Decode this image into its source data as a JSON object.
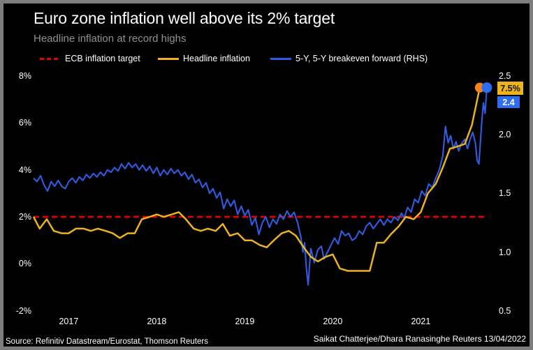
{
  "header": {
    "title": "Euro zone inflation well above its 2% target",
    "subtitle": "Headline inflation at record highs"
  },
  "legend": [
    {
      "label": "ECB inflation target",
      "color": "#e60000",
      "style": "dashed"
    },
    {
      "label": "Headline inflation",
      "color": "#ecb220",
      "style": "solid"
    },
    {
      "label": "5-Y, 5-Y breakeven forward (RHS)",
      "color": "#2f5ce0",
      "style": "solid"
    }
  ],
  "footer": {
    "source": "Source: Refinitiv Datastream/Eurostat, Thomson Reuters",
    "credit": "Saikat Chatterjee/Dhara Ranasinghe Reuters 13/04/2022"
  },
  "colors": {
    "background": "#000000",
    "frame_border": "#7d7d7d",
    "target_red": "#e60000",
    "headline_yellow": "#ecb220",
    "breakeven_blue": "#2f5ce0",
    "headline_marker_orange": "#f5821f",
    "breakeven_marker_blue": "#2e6cf2",
    "badge_yellow_bg": "#ecb220",
    "badge_yellow_text": "#1c1400",
    "badge_blue_bg": "#2e6cf2",
    "badge_blue_text": "#ffffff"
  },
  "chart_data": {
    "type": "line",
    "title": "Euro zone inflation well above its 2% target",
    "x_axis": {
      "ticks": [
        "2017",
        "2018",
        "2019",
        "2020",
        "2021"
      ],
      "tick_positions_decimal_year": [
        2017.5,
        2018.5,
        2019.5,
        2020.5,
        2021.5
      ],
      "range": [
        2017.1,
        2022.3
      ]
    },
    "left_axis": {
      "tick_labels": [
        "8%",
        "6%",
        "4%",
        "2%",
        "0%",
        "-2%"
      ],
      "tick_values": [
        8,
        6,
        4,
        2,
        0,
        -2
      ],
      "range": [
        -2,
        8
      ],
      "unit": "percent"
    },
    "right_axis": {
      "tick_labels": [
        "2.5",
        "2.0",
        "1.5",
        "1.0",
        "0.5"
      ],
      "tick_values": [
        2.5,
        2.0,
        1.5,
        1.0,
        0.5
      ],
      "range": [
        0.5,
        2.5
      ]
    },
    "grid": false,
    "legend_position": "top",
    "reference_line": {
      "name": "ECB inflation target",
      "axis": "left",
      "value": 2,
      "style": "dashed",
      "color": "#e60000"
    },
    "series": [
      {
        "name": "Headline inflation",
        "axis": "left",
        "color": "#ecb220",
        "end_label": "7.5%",
        "end_value": 7.5,
        "marker_color": "#f5821f",
        "points": [
          [
            2017.1,
            2.0
          ],
          [
            2017.17,
            1.5
          ],
          [
            2017.25,
            1.9
          ],
          [
            2017.33,
            1.4
          ],
          [
            2017.42,
            1.3
          ],
          [
            2017.5,
            1.3
          ],
          [
            2017.58,
            1.5
          ],
          [
            2017.67,
            1.5
          ],
          [
            2017.75,
            1.4
          ],
          [
            2017.83,
            1.5
          ],
          [
            2017.92,
            1.4
          ],
          [
            2018.0,
            1.3
          ],
          [
            2018.08,
            1.1
          ],
          [
            2018.17,
            1.3
          ],
          [
            2018.25,
            1.3
          ],
          [
            2018.33,
            1.9
          ],
          [
            2018.42,
            2.0
          ],
          [
            2018.5,
            2.1
          ],
          [
            2018.58,
            2.0
          ],
          [
            2018.67,
            2.1
          ],
          [
            2018.75,
            2.2
          ],
          [
            2018.83,
            1.9
          ],
          [
            2018.92,
            1.5
          ],
          [
            2019.0,
            1.4
          ],
          [
            2019.08,
            1.5
          ],
          [
            2019.17,
            1.4
          ],
          [
            2019.25,
            1.7
          ],
          [
            2019.33,
            1.2
          ],
          [
            2019.42,
            1.3
          ],
          [
            2019.5,
            1.0
          ],
          [
            2019.58,
            1.0
          ],
          [
            2019.67,
            0.8
          ],
          [
            2019.75,
            0.7
          ],
          [
            2019.83,
            1.0
          ],
          [
            2019.92,
            1.3
          ],
          [
            2020.0,
            1.4
          ],
          [
            2020.08,
            1.2
          ],
          [
            2020.17,
            0.7
          ],
          [
            2020.25,
            0.3
          ],
          [
            2020.33,
            0.1
          ],
          [
            2020.42,
            0.3
          ],
          [
            2020.5,
            0.4
          ],
          [
            2020.58,
            -0.2
          ],
          [
            2020.67,
            -0.3
          ],
          [
            2020.75,
            -0.3
          ],
          [
            2020.83,
            -0.3
          ],
          [
            2020.92,
            -0.3
          ],
          [
            2021.0,
            0.9
          ],
          [
            2021.08,
            0.9
          ],
          [
            2021.17,
            1.3
          ],
          [
            2021.25,
            1.6
          ],
          [
            2021.33,
            2.0
          ],
          [
            2021.42,
            1.9
          ],
          [
            2021.5,
            2.2
          ],
          [
            2021.58,
            3.0
          ],
          [
            2021.67,
            3.4
          ],
          [
            2021.75,
            4.1
          ],
          [
            2021.83,
            4.9
          ],
          [
            2021.92,
            5.0
          ],
          [
            2022.0,
            5.1
          ],
          [
            2022.08,
            5.9
          ],
          [
            2022.17,
            7.5
          ]
        ]
      },
      {
        "name": "5-Y, 5-Y breakeven forward (RHS)",
        "axis": "right",
        "color": "#2f5ce0",
        "end_label": "2.4",
        "end_value": 2.4,
        "marker_color": "#2e6cf2",
        "points": [
          [
            2017.1,
            1.63
          ],
          [
            2017.14,
            1.6
          ],
          [
            2017.18,
            1.65
          ],
          [
            2017.22,
            1.57
          ],
          [
            2017.26,
            1.52
          ],
          [
            2017.3,
            1.6
          ],
          [
            2017.34,
            1.56
          ],
          [
            2017.38,
            1.61
          ],
          [
            2017.42,
            1.56
          ],
          [
            2017.46,
            1.54
          ],
          [
            2017.5,
            1.6
          ],
          [
            2017.54,
            1.63
          ],
          [
            2017.58,
            1.59
          ],
          [
            2017.62,
            1.64
          ],
          [
            2017.66,
            1.61
          ],
          [
            2017.7,
            1.66
          ],
          [
            2017.74,
            1.63
          ],
          [
            2017.78,
            1.67
          ],
          [
            2017.82,
            1.64
          ],
          [
            2017.86,
            1.68
          ],
          [
            2017.9,
            1.65
          ],
          [
            2017.94,
            1.7
          ],
          [
            2017.98,
            1.68
          ],
          [
            2018.02,
            1.72
          ],
          [
            2018.06,
            1.69
          ],
          [
            2018.1,
            1.75
          ],
          [
            2018.14,
            1.71
          ],
          [
            2018.18,
            1.76
          ],
          [
            2018.22,
            1.72
          ],
          [
            2018.26,
            1.75
          ],
          [
            2018.3,
            1.7
          ],
          [
            2018.34,
            1.74
          ],
          [
            2018.38,
            1.69
          ],
          [
            2018.42,
            1.73
          ],
          [
            2018.46,
            1.67
          ],
          [
            2018.5,
            1.72
          ],
          [
            2018.54,
            1.65
          ],
          [
            2018.58,
            1.7
          ],
          [
            2018.62,
            1.66
          ],
          [
            2018.66,
            1.71
          ],
          [
            2018.7,
            1.67
          ],
          [
            2018.74,
            1.7
          ],
          [
            2018.78,
            1.65
          ],
          [
            2018.82,
            1.68
          ],
          [
            2018.86,
            1.62
          ],
          [
            2018.9,
            1.66
          ],
          [
            2018.94,
            1.59
          ],
          [
            2018.98,
            1.62
          ],
          [
            2019.02,
            1.55
          ],
          [
            2019.06,
            1.59
          ],
          [
            2019.1,
            1.5
          ],
          [
            2019.14,
            1.54
          ],
          [
            2019.18,
            1.46
          ],
          [
            2019.22,
            1.51
          ],
          [
            2019.26,
            1.37
          ],
          [
            2019.3,
            1.45
          ],
          [
            2019.34,
            1.39
          ],
          [
            2019.38,
            1.44
          ],
          [
            2019.42,
            1.32
          ],
          [
            2019.46,
            1.39
          ],
          [
            2019.5,
            1.31
          ],
          [
            2019.54,
            1.36
          ],
          [
            2019.58,
            1.23
          ],
          [
            2019.62,
            1.29
          ],
          [
            2019.66,
            1.15
          ],
          [
            2019.7,
            1.25
          ],
          [
            2019.74,
            1.3
          ],
          [
            2019.78,
            1.21
          ],
          [
            2019.82,
            1.28
          ],
          [
            2019.86,
            1.24
          ],
          [
            2019.9,
            1.32
          ],
          [
            2019.94,
            1.28
          ],
          [
            2019.98,
            1.35
          ],
          [
            2020.02,
            1.3
          ],
          [
            2020.06,
            1.34
          ],
          [
            2020.1,
            1.25
          ],
          [
            2020.14,
            1.12
          ],
          [
            2020.16,
            1.0
          ],
          [
            2020.18,
            1.08
          ],
          [
            2020.2,
            0.86
          ],
          [
            2020.22,
            0.72
          ],
          [
            2020.25,
            1.03
          ],
          [
            2020.29,
            0.91
          ],
          [
            2020.33,
            1.02
          ],
          [
            2020.37,
            1.05
          ],
          [
            2020.4,
            0.94
          ],
          [
            2020.44,
            1.0
          ],
          [
            2020.48,
            1.06
          ],
          [
            2020.52,
            1.12
          ],
          [
            2020.56,
            1.07
          ],
          [
            2020.6,
            1.18
          ],
          [
            2020.64,
            1.14
          ],
          [
            2020.68,
            1.16
          ],
          [
            2020.72,
            1.1
          ],
          [
            2020.76,
            1.12
          ],
          [
            2020.8,
            1.18
          ],
          [
            2020.84,
            1.15
          ],
          [
            2020.88,
            1.22
          ],
          [
            2020.92,
            1.25
          ],
          [
            2020.96,
            1.2
          ],
          [
            2021.0,
            1.24
          ],
          [
            2021.04,
            1.28
          ],
          [
            2021.08,
            1.23
          ],
          [
            2021.12,
            1.28
          ],
          [
            2021.16,
            1.25
          ],
          [
            2021.2,
            1.3
          ],
          [
            2021.24,
            1.27
          ],
          [
            2021.28,
            1.33
          ],
          [
            2021.31,
            1.29
          ],
          [
            2021.35,
            1.38
          ],
          [
            2021.39,
            1.34
          ],
          [
            2021.43,
            1.45
          ],
          [
            2021.47,
            1.42
          ],
          [
            2021.51,
            1.52
          ],
          [
            2021.55,
            1.48
          ],
          [
            2021.59,
            1.58
          ],
          [
            2021.63,
            1.55
          ],
          [
            2021.67,
            1.63
          ],
          [
            2021.71,
            1.7
          ],
          [
            2021.75,
            1.82
          ],
          [
            2021.78,
            2.07
          ],
          [
            2021.81,
            1.93
          ],
          [
            2021.84,
            1.99
          ],
          [
            2021.87,
            1.88
          ],
          [
            2021.9,
            1.94
          ],
          [
            2021.93,
            1.86
          ],
          [
            2021.96,
            1.92
          ],
          [
            2022.0,
            1.96
          ],
          [
            2022.03,
            1.88
          ],
          [
            2022.06,
            1.96
          ],
          [
            2022.09,
            2.02
          ],
          [
            2022.12,
            1.93
          ],
          [
            2022.14,
            1.78
          ],
          [
            2022.16,
            1.75
          ],
          [
            2022.19,
            2.08
          ],
          [
            2022.21,
            2.27
          ],
          [
            2022.23,
            2.18
          ],
          [
            2022.25,
            2.4
          ]
        ]
      }
    ]
  }
}
